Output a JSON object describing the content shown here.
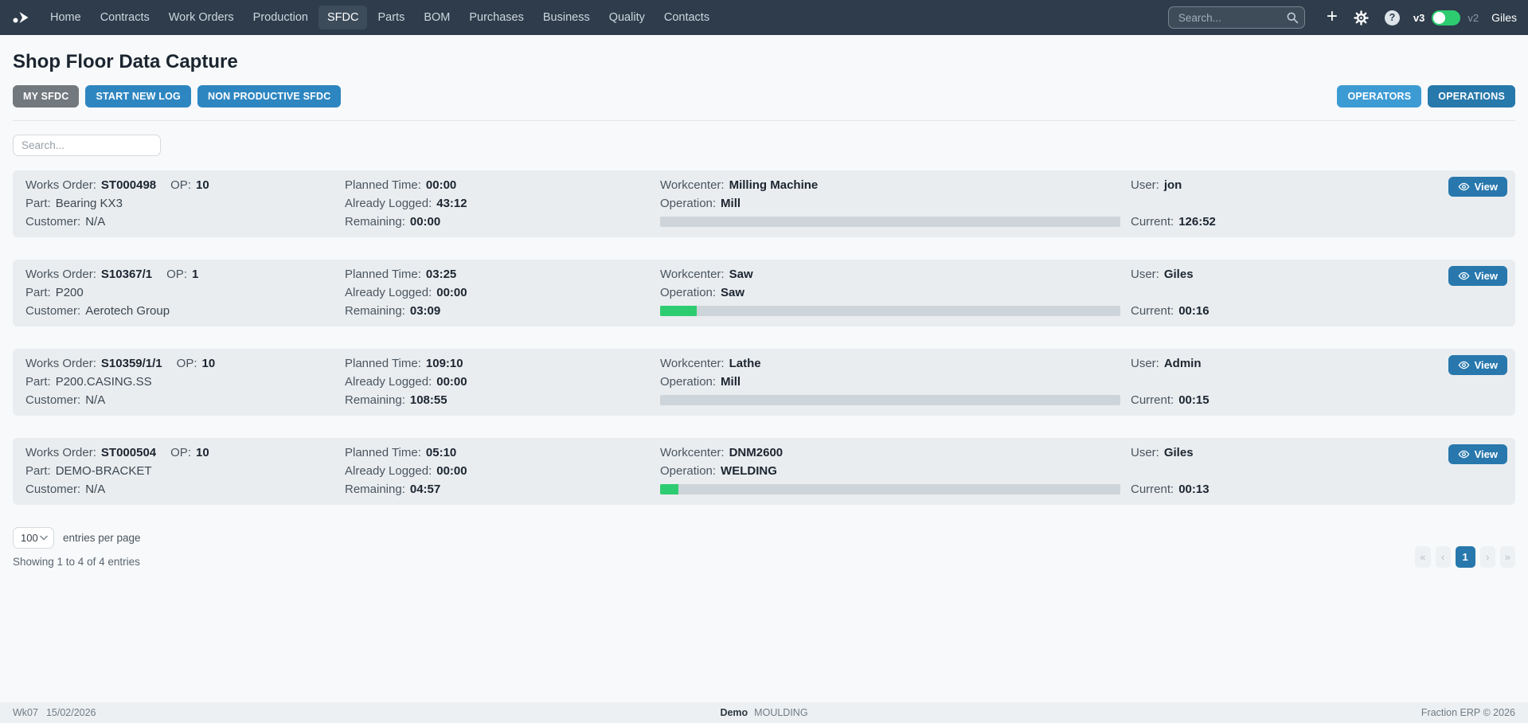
{
  "navbar": {
    "brand_icon": "fraction-logo",
    "items": [
      {
        "label": "Home",
        "active": false
      },
      {
        "label": "Contracts",
        "active": false
      },
      {
        "label": "Work Orders",
        "active": false
      },
      {
        "label": "Production",
        "active": false
      },
      {
        "label": "SFDC",
        "active": true
      },
      {
        "label": "Parts",
        "active": false
      },
      {
        "label": "BOM",
        "active": false
      },
      {
        "label": "Purchases",
        "active": false
      },
      {
        "label": "Business",
        "active": false
      },
      {
        "label": "Quality",
        "active": false
      },
      {
        "label": "Contacts",
        "active": false
      }
    ],
    "search": {
      "placeholder": "Search..."
    },
    "icons": [
      "plus-icon",
      "gear-icon",
      "question-icon"
    ],
    "version_toggle": {
      "left": "v3",
      "right": "v2",
      "state": "left",
      "color": "#2ecc71"
    },
    "user": "Giles"
  },
  "page": {
    "title": "Shop Floor Data Capture",
    "buttons_left": [
      {
        "label": "MY SFDC",
        "variant": "gray"
      },
      {
        "label": "START NEW LOG",
        "variant": "blue"
      },
      {
        "label": "NON PRODUCTIVE SFDC",
        "variant": "blue"
      }
    ],
    "buttons_right": [
      {
        "label": "OPERATORS",
        "variant": "light-blue"
      },
      {
        "label": "OPERATIONS",
        "variant": "dark-blue"
      }
    ],
    "list_search_placeholder": "Search..."
  },
  "labels": {
    "works_order": "Works Order:",
    "op": "OP:",
    "part": "Part:",
    "customer": "Customer:",
    "planned": "Planned Time:",
    "logged": "Already Logged:",
    "remaining": "Remaining:",
    "workcenter": "Workcenter:",
    "operation": "Operation:",
    "user": "User:",
    "current": "Current:"
  },
  "view_button": {
    "label": "View"
  },
  "cards": [
    {
      "works_order": "ST000498",
      "op": "10",
      "part": "Bearing KX3",
      "customer": "N/A",
      "planned": "00:00",
      "logged": "43:12",
      "remaining": "00:00",
      "workcenter": "Milling Machine",
      "operation": "Mill",
      "progress_pct": 0,
      "user": "jon",
      "current": "126:52"
    },
    {
      "works_order": "S10367/1",
      "op": "1",
      "part": "P200",
      "customer": "Aerotech Group",
      "planned": "03:25",
      "logged": "00:00",
      "remaining": "03:09",
      "workcenter": "Saw",
      "operation": "Saw",
      "progress_pct": 8,
      "user": "Giles",
      "current": "00:16"
    },
    {
      "works_order": "S10359/1/1",
      "op": "10",
      "part": "P200.CASING.SS",
      "customer": "N/A",
      "planned": "109:10",
      "logged": "00:00",
      "remaining": "108:55",
      "workcenter": "Lathe",
      "operation": "Mill",
      "progress_pct": 0,
      "user": "Admin",
      "current": "00:15"
    },
    {
      "works_order": "ST000504",
      "op": "10",
      "part": "DEMO-BRACKET",
      "customer": "N/A",
      "planned": "05:10",
      "logged": "00:00",
      "remaining": "04:57",
      "workcenter": "DNM2600",
      "operation": "WELDING",
      "progress_pct": 4,
      "user": "Giles",
      "current": "00:13"
    }
  ],
  "pagination": {
    "entries_per_page": "100",
    "entries_suffix": "entries per page",
    "showing": "Showing 1 to 4 of 4 entries",
    "buttons": [
      "«",
      "‹",
      "1",
      "›",
      "»"
    ],
    "active": "1"
  },
  "footer": {
    "week": "Wk07",
    "date": "15/02/2026",
    "site_bold": "Demo",
    "site": "MOULDING",
    "copyright": "Fraction ERP © 2026"
  },
  "colors": {
    "navbar": "#2e3c4b",
    "accent_blue": "#2e86c1",
    "green": "#2ecc71",
    "card_bg": "#e9edf0"
  }
}
